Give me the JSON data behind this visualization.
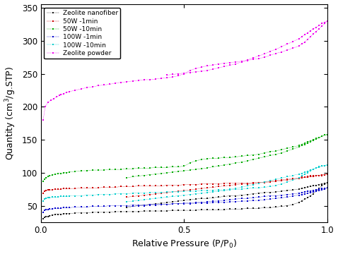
{
  "title": "",
  "xlabel": "Relative Pressure (P/P$_0$)",
  "ylabel": "Quantity (cm$^3$/g.STP)",
  "xlim": [
    0.0,
    1.0
  ],
  "ylim": [
    25,
    355
  ],
  "yticks": [
    50,
    100,
    150,
    200,
    250,
    300,
    350
  ],
  "xticks": [
    0.0,
    0.5,
    1.0
  ],
  "series": [
    {
      "label": "Zeolite nanofiber",
      "color": "#1a1a1a",
      "adsorption_x": [
        0.008,
        0.012,
        0.018,
        0.025,
        0.03,
        0.04,
        0.05,
        0.06,
        0.07,
        0.08,
        0.09,
        0.1,
        0.12,
        0.14,
        0.16,
        0.18,
        0.2,
        0.22,
        0.24,
        0.26,
        0.28,
        0.3,
        0.32,
        0.34,
        0.36,
        0.38,
        0.4,
        0.42,
        0.44,
        0.46,
        0.48,
        0.5,
        0.52,
        0.54,
        0.56,
        0.58,
        0.6,
        0.62,
        0.64,
        0.66,
        0.68,
        0.7,
        0.72,
        0.74,
        0.76,
        0.78,
        0.8,
        0.82,
        0.84,
        0.86,
        0.88,
        0.9,
        0.91,
        0.92,
        0.93,
        0.94,
        0.95,
        0.96,
        0.97,
        0.98,
        0.99,
        1.0
      ],
      "adsorption_y": [
        30,
        32,
        33,
        34,
        35,
        36,
        37,
        37,
        37,
        38,
        38,
        38,
        39,
        39,
        39,
        40,
        40,
        40,
        40,
        41,
        41,
        41,
        41,
        41,
        42,
        42,
        42,
        42,
        42,
        43,
        43,
        43,
        43,
        43,
        44,
        44,
        44,
        44,
        44,
        45,
        45,
        45,
        46,
        46,
        46,
        47,
        47,
        48,
        49,
        50,
        52,
        55,
        57,
        60,
        62,
        65,
        68,
        72,
        76,
        80,
        83,
        85
      ],
      "desorption_x": [
        1.0,
        0.99,
        0.98,
        0.97,
        0.96,
        0.95,
        0.94,
        0.93,
        0.92,
        0.91,
        0.9,
        0.88,
        0.86,
        0.84,
        0.82,
        0.8,
        0.78,
        0.76,
        0.74,
        0.72,
        0.7,
        0.68,
        0.66,
        0.64,
        0.62,
        0.6,
        0.58,
        0.56,
        0.54,
        0.52,
        0.5,
        0.48,
        0.46,
        0.44,
        0.42,
        0.4,
        0.38,
        0.36,
        0.34,
        0.32,
        0.3
      ],
      "desorption_y": [
        85,
        84,
        83,
        82,
        81,
        80,
        79,
        78,
        77,
        76,
        75,
        74,
        73,
        72,
        71,
        70,
        70,
        69,
        68,
        67,
        66,
        65,
        65,
        64,
        63,
        62,
        61,
        61,
        60,
        59,
        58,
        57,
        56,
        55,
        54,
        53,
        52,
        51,
        50,
        49,
        47
      ]
    },
    {
      "label": "50W -1min",
      "color": "#cc0000",
      "adsorption_x": [
        0.008,
        0.012,
        0.018,
        0.025,
        0.03,
        0.04,
        0.05,
        0.06,
        0.07,
        0.08,
        0.09,
        0.1,
        0.12,
        0.14,
        0.16,
        0.18,
        0.2,
        0.22,
        0.24,
        0.26,
        0.28,
        0.3,
        0.32,
        0.34,
        0.36,
        0.38,
        0.4,
        0.42,
        0.44,
        0.46,
        0.48,
        0.5,
        0.52,
        0.54,
        0.56,
        0.58,
        0.6,
        0.62,
        0.64,
        0.66,
        0.68,
        0.7,
        0.72,
        0.74,
        0.76,
        0.78,
        0.8,
        0.82,
        0.84,
        0.86,
        0.88,
        0.9,
        0.91,
        0.92,
        0.93,
        0.94,
        0.95,
        0.96,
        0.97,
        0.98,
        0.99,
        1.0
      ],
      "adsorption_y": [
        69,
        72,
        73,
        74,
        74,
        74,
        75,
        75,
        75,
        76,
        76,
        76,
        76,
        77,
        77,
        77,
        77,
        78,
        78,
        78,
        79,
        79,
        79,
        80,
        80,
        80,
        80,
        80,
        81,
        81,
        81,
        82,
        82,
        82,
        83,
        83,
        83,
        83,
        84,
        84,
        84,
        84,
        84,
        85,
        85,
        85,
        86,
        87,
        88,
        89,
        90,
        91,
        92,
        93,
        93,
        94,
        94,
        95,
        96,
        96,
        97,
        98
      ],
      "desorption_x": [
        1.0,
        0.99,
        0.98,
        0.97,
        0.96,
        0.95,
        0.94,
        0.93,
        0.92,
        0.91,
        0.9,
        0.88,
        0.86,
        0.84,
        0.82,
        0.8,
        0.78,
        0.76,
        0.74,
        0.72,
        0.7,
        0.68,
        0.66,
        0.64,
        0.62,
        0.6,
        0.58,
        0.56,
        0.54,
        0.52,
        0.5,
        0.48,
        0.46,
        0.44,
        0.42,
        0.4,
        0.38,
        0.36,
        0.34,
        0.32,
        0.3
      ],
      "desorption_y": [
        98,
        97,
        97,
        96,
        96,
        95,
        95,
        94,
        93,
        93,
        92,
        91,
        90,
        89,
        88,
        87,
        86,
        85,
        84,
        83,
        83,
        82,
        81,
        80,
        79,
        78,
        77,
        76,
        75,
        74,
        73,
        72,
        71,
        70,
        69,
        68,
        67,
        66,
        65,
        64,
        63
      ]
    },
    {
      "label": "50W -10min",
      "color": "#00aa00",
      "adsorption_x": [
        0.008,
        0.012,
        0.018,
        0.025,
        0.03,
        0.04,
        0.05,
        0.06,
        0.07,
        0.08,
        0.09,
        0.1,
        0.12,
        0.14,
        0.16,
        0.18,
        0.2,
        0.22,
        0.24,
        0.26,
        0.28,
        0.3,
        0.32,
        0.34,
        0.36,
        0.38,
        0.4,
        0.42,
        0.44,
        0.46,
        0.48,
        0.5,
        0.52,
        0.54,
        0.56,
        0.58,
        0.6,
        0.62,
        0.64,
        0.66,
        0.68,
        0.7,
        0.72,
        0.74,
        0.76,
        0.78,
        0.8,
        0.82,
        0.84,
        0.86,
        0.88,
        0.9,
        0.91,
        0.92,
        0.93,
        0.94,
        0.95,
        0.96,
        0.97,
        0.98,
        0.99,
        1.0
      ],
      "adsorption_y": [
        87,
        90,
        92,
        94,
        95,
        97,
        98,
        99,
        99,
        100,
        100,
        101,
        102,
        103,
        103,
        104,
        104,
        104,
        105,
        105,
        105,
        106,
        106,
        107,
        107,
        107,
        108,
        108,
        108,
        109,
        109,
        110,
        115,
        118,
        120,
        121,
        122,
        122,
        123,
        123,
        124,
        125,
        126,
        127,
        128,
        130,
        132,
        133,
        135,
        137,
        139,
        141,
        143,
        145,
        147,
        148,
        150,
        152,
        153,
        155,
        157,
        158
      ],
      "desorption_x": [
        1.0,
        0.99,
        0.98,
        0.97,
        0.96,
        0.95,
        0.94,
        0.93,
        0.92,
        0.91,
        0.9,
        0.88,
        0.86,
        0.84,
        0.82,
        0.8,
        0.78,
        0.76,
        0.74,
        0.72,
        0.7,
        0.68,
        0.66,
        0.64,
        0.62,
        0.6,
        0.58,
        0.56,
        0.54,
        0.52,
        0.5,
        0.48,
        0.46,
        0.44,
        0.42,
        0.4,
        0.38,
        0.36,
        0.34,
        0.32,
        0.3
      ],
      "desorption_y": [
        158,
        157,
        155,
        153,
        151,
        149,
        147,
        145,
        143,
        141,
        139,
        136,
        133,
        130,
        128,
        126,
        124,
        122,
        120,
        118,
        116,
        115,
        113,
        112,
        110,
        109,
        107,
        106,
        105,
        104,
        103,
        102,
        101,
        100,
        99,
        98,
        97,
        96,
        95,
        94,
        92
      ]
    },
    {
      "label": "100W -1min",
      "color": "#0000cc",
      "adsorption_x": [
        0.008,
        0.012,
        0.018,
        0.025,
        0.03,
        0.04,
        0.05,
        0.06,
        0.07,
        0.08,
        0.09,
        0.1,
        0.12,
        0.14,
        0.16,
        0.18,
        0.2,
        0.22,
        0.24,
        0.26,
        0.28,
        0.3,
        0.32,
        0.34,
        0.36,
        0.38,
        0.4,
        0.42,
        0.44,
        0.46,
        0.48,
        0.5,
        0.52,
        0.54,
        0.56,
        0.58,
        0.6,
        0.62,
        0.64,
        0.66,
        0.68,
        0.7,
        0.72,
        0.74,
        0.76,
        0.78,
        0.8,
        0.82,
        0.84,
        0.86,
        0.88,
        0.9,
        0.91,
        0.92,
        0.93,
        0.94,
        0.95,
        0.96,
        0.97,
        0.98,
        0.99,
        1.0
      ],
      "adsorption_y": [
        40,
        43,
        44,
        44,
        45,
        45,
        46,
        46,
        46,
        47,
        47,
        47,
        48,
        48,
        48,
        49,
        49,
        49,
        50,
        50,
        50,
        50,
        51,
        51,
        51,
        52,
        52,
        52,
        52,
        53,
        53,
        53,
        53,
        54,
        54,
        54,
        55,
        55,
        55,
        56,
        56,
        57,
        57,
        58,
        58,
        59,
        60,
        61,
        62,
        63,
        65,
        66,
        67,
        68,
        69,
        70,
        71,
        72,
        73,
        74,
        75,
        77
      ],
      "desorption_x": [
        1.0,
        0.99,
        0.98,
        0.97,
        0.96,
        0.95,
        0.94,
        0.93,
        0.92,
        0.91,
        0.9,
        0.88,
        0.86,
        0.84,
        0.82,
        0.8,
        0.78,
        0.76,
        0.74,
        0.72,
        0.7,
        0.68,
        0.66,
        0.64,
        0.62,
        0.6,
        0.58,
        0.56,
        0.54,
        0.52,
        0.5,
        0.48,
        0.46,
        0.44,
        0.42,
        0.4,
        0.38,
        0.36,
        0.34,
        0.32,
        0.3
      ],
      "desorption_y": [
        77,
        76,
        76,
        75,
        74,
        73,
        72,
        72,
        71,
        70,
        69,
        68,
        67,
        66,
        65,
        65,
        64,
        63,
        62,
        61,
        61,
        60,
        59,
        58,
        57,
        57,
        56,
        55,
        55,
        54,
        54,
        53,
        53,
        52,
        52,
        51,
        51,
        50,
        50,
        49,
        49
      ]
    },
    {
      "label": "100W -10min",
      "color": "#00cccc",
      "adsorption_x": [
        0.008,
        0.012,
        0.018,
        0.025,
        0.03,
        0.04,
        0.05,
        0.06,
        0.07,
        0.08,
        0.09,
        0.1,
        0.12,
        0.14,
        0.16,
        0.18,
        0.2,
        0.22,
        0.24,
        0.26,
        0.28,
        0.3,
        0.32,
        0.34,
        0.36,
        0.38,
        0.4,
        0.42,
        0.44,
        0.46,
        0.48,
        0.5,
        0.52,
        0.54,
        0.56,
        0.58,
        0.6,
        0.62,
        0.64,
        0.66,
        0.68,
        0.7,
        0.72,
        0.74,
        0.76,
        0.78,
        0.8,
        0.82,
        0.84,
        0.86,
        0.88,
        0.9,
        0.91,
        0.92,
        0.93,
        0.94,
        0.95,
        0.96,
        0.97,
        0.98,
        0.99,
        1.0
      ],
      "adsorption_y": [
        57,
        60,
        61,
        62,
        62,
        63,
        63,
        63,
        64,
        64,
        64,
        65,
        65,
        65,
        66,
        66,
        67,
        67,
        67,
        68,
        68,
        68,
        69,
        69,
        69,
        70,
        70,
        70,
        71,
        71,
        71,
        72,
        72,
        72,
        73,
        73,
        73,
        74,
        74,
        74,
        75,
        75,
        76,
        77,
        77,
        78,
        79,
        81,
        83,
        86,
        89,
        92,
        95,
        98,
        100,
        103,
        105,
        107,
        109,
        110,
        111,
        112
      ],
      "desorption_x": [
        1.0,
        0.99,
        0.98,
        0.97,
        0.96,
        0.95,
        0.94,
        0.93,
        0.92,
        0.91,
        0.9,
        0.88,
        0.86,
        0.84,
        0.82,
        0.8,
        0.78,
        0.76,
        0.74,
        0.72,
        0.7,
        0.68,
        0.66,
        0.64,
        0.62,
        0.6,
        0.58,
        0.56,
        0.54,
        0.52,
        0.5,
        0.48,
        0.46,
        0.44,
        0.42,
        0.4,
        0.38,
        0.36,
        0.34,
        0.32,
        0.3
      ],
      "desorption_y": [
        112,
        111,
        110,
        108,
        107,
        105,
        104,
        102,
        101,
        99,
        98,
        96,
        94,
        92,
        90,
        88,
        86,
        84,
        82,
        80,
        78,
        76,
        75,
        73,
        72,
        71,
        70,
        69,
        68,
        67,
        66,
        65,
        64,
        63,
        62,
        61,
        60,
        59,
        58,
        57,
        56
      ]
    },
    {
      "label": "Zeolite powder",
      "color": "#ee00ee",
      "adsorption_x": [
        0.008,
        0.015,
        0.025,
        0.035,
        0.045,
        0.055,
        0.065,
        0.07,
        0.08,
        0.09,
        0.1,
        0.12,
        0.14,
        0.16,
        0.18,
        0.2,
        0.22,
        0.24,
        0.26,
        0.28,
        0.3,
        0.32,
        0.34,
        0.36,
        0.38,
        0.4,
        0.42,
        0.44,
        0.46,
        0.48,
        0.5,
        0.52,
        0.54,
        0.56,
        0.58,
        0.6,
        0.62,
        0.64,
        0.66,
        0.68,
        0.7,
        0.72,
        0.74,
        0.76,
        0.78,
        0.8,
        0.82,
        0.84,
        0.86,
        0.88,
        0.9,
        0.91,
        0.92,
        0.93,
        0.94,
        0.95,
        0.96,
        0.97,
        0.98,
        0.99,
        1.0
      ],
      "adsorption_y": [
        180,
        200,
        207,
        210,
        212,
        215,
        217,
        218,
        220,
        222,
        223,
        225,
        227,
        229,
        230,
        232,
        233,
        234,
        236,
        237,
        238,
        239,
        240,
        241,
        241,
        242,
        243,
        244,
        245,
        247,
        250,
        255,
        258,
        260,
        262,
        263,
        265,
        266,
        267,
        268,
        269,
        270,
        272,
        273,
        275,
        278,
        281,
        283,
        286,
        289,
        292,
        295,
        298,
        302,
        306,
        310,
        314,
        318,
        322,
        326,
        330
      ],
      "desorption_x": [
        1.0,
        0.99,
        0.98,
        0.97,
        0.96,
        0.95,
        0.94,
        0.93,
        0.92,
        0.91,
        0.9,
        0.88,
        0.86,
        0.84,
        0.82,
        0.8,
        0.78,
        0.76,
        0.74,
        0.72,
        0.7,
        0.68,
        0.66,
        0.64,
        0.62,
        0.6,
        0.58,
        0.56,
        0.54,
        0.52,
        0.5,
        0.48,
        0.46,
        0.44
      ],
      "desorption_y": [
        330,
        328,
        326,
        323,
        320,
        318,
        315,
        312,
        309,
        306,
        303,
        299,
        295,
        291,
        287,
        284,
        280,
        277,
        274,
        271,
        268,
        265,
        263,
        261,
        259,
        257,
        255,
        254,
        253,
        252,
        251,
        250,
        249,
        248
      ]
    }
  ],
  "legend_loc": "upper left",
  "marker": "s",
  "markersize": 2.0,
  "linewidth": 0.3,
  "background_color": "#ffffff"
}
